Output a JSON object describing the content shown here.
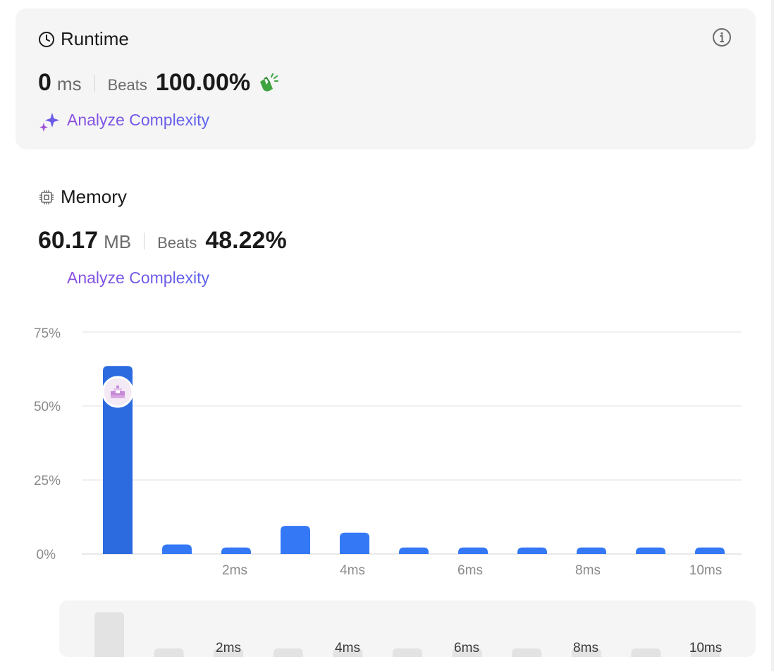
{
  "runtime": {
    "title": "Runtime",
    "value": "0",
    "unit": "ms",
    "beats_label": "Beats",
    "beats_pct": "100.00%",
    "analyze_label": "Analyze Complexity"
  },
  "memory": {
    "title": "Memory",
    "value": "60.17",
    "unit": "MB",
    "beats_label": "Beats",
    "beats_pct": "48.22%",
    "analyze_label": "Analyze Complexity"
  },
  "colors": {
    "bar": "#3478f6",
    "bar_selected": "#2c6ae0",
    "card_bg": "#f5f5f5",
    "accent_purple": "#7c4ee8",
    "accent_green": "#3fa33f"
  },
  "icons": {
    "runtime": "clock-icon",
    "memory": "chip-icon",
    "info": "info-icon",
    "analyze": "sparkle-icon",
    "beats": "clapping-hands-icon"
  },
  "chart_data": {
    "type": "bar",
    "y_ticks": [
      "75%",
      "50%",
      "25%",
      "0%"
    ],
    "ylim": [
      0,
      75
    ],
    "x_tick_labels": [
      "",
      "",
      "2ms",
      "",
      "4ms",
      "",
      "6ms",
      "",
      "8ms",
      "",
      "10ms"
    ],
    "values": [
      63.5,
      3.2,
      2.2,
      9.5,
      7.2,
      2.2,
      2.2,
      2.2,
      2.2,
      2.2,
      2.2
    ],
    "selected_index": 0,
    "grid": true
  },
  "overview": {
    "x_tick_labels": [
      "",
      "",
      "2ms",
      "",
      "4ms",
      "",
      "6ms",
      "",
      "8ms",
      "",
      "10ms"
    ]
  }
}
